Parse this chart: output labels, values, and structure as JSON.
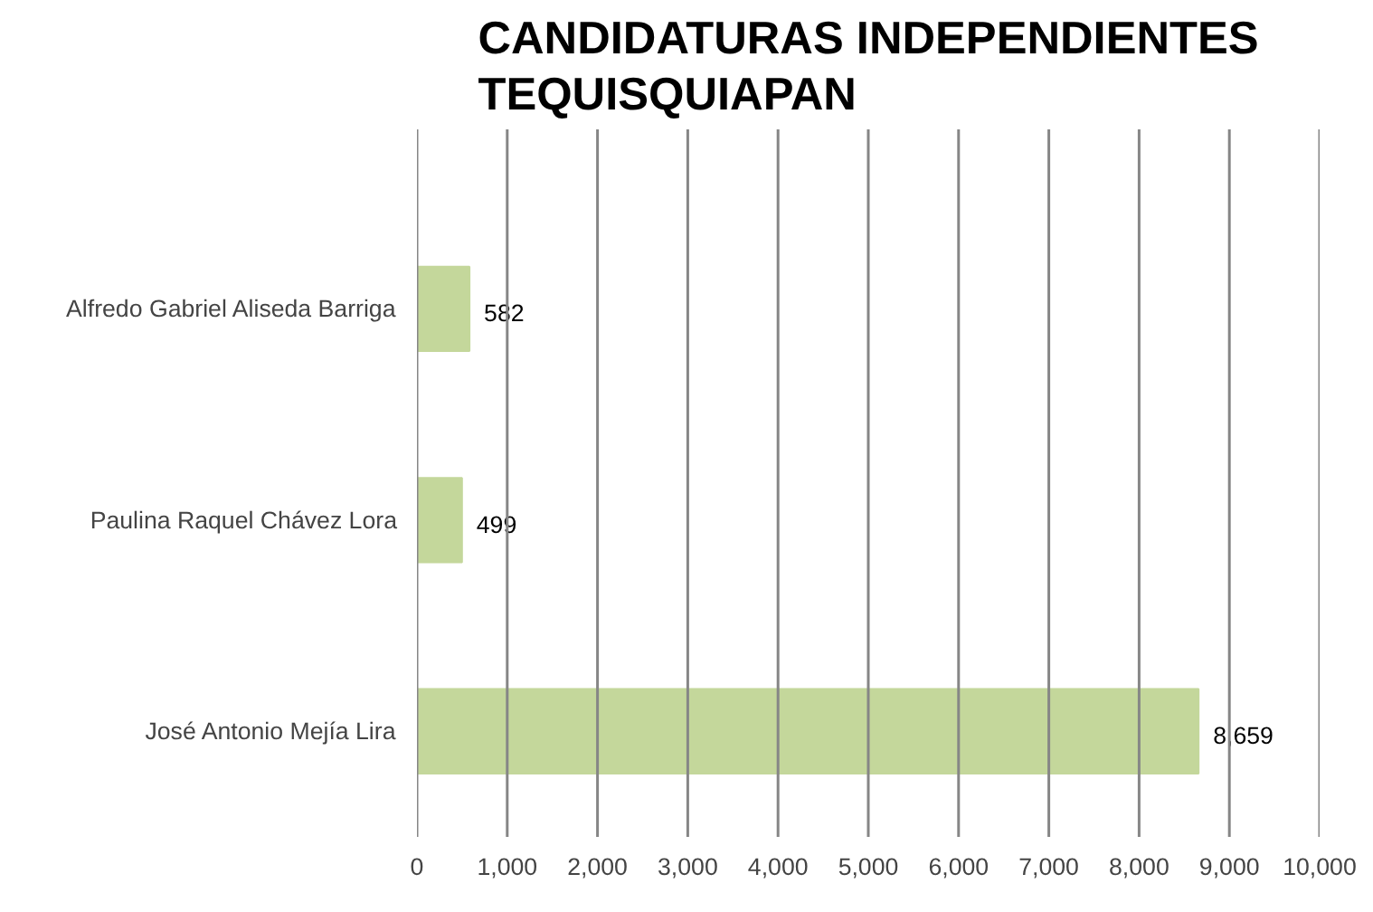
{
  "chart_data": {
    "type": "bar",
    "orientation": "horizontal",
    "title": "CANDIDATURAS INDEPENDIENTES\nTEQUISQUIAPAN",
    "categories": [
      "Alfredo Gabriel Aliseda Barriga",
      "Paulina Raquel Chávez Lora",
      "José Antonio Mejía Lira"
    ],
    "values": [
      582,
      499,
      8659
    ],
    "value_labels": [
      "582",
      "499",
      "8,659"
    ],
    "color": "#c4d79b",
    "xlim": [
      0,
      10000
    ],
    "xticks": [
      {
        "value": 0,
        "label": "0"
      },
      {
        "value": 1000,
        "label": "1,000"
      },
      {
        "value": 2000,
        "label": "2,000"
      },
      {
        "value": 3000,
        "label": "3,000"
      },
      {
        "value": 4000,
        "label": "4,000"
      },
      {
        "value": 5000,
        "label": "5,000"
      },
      {
        "value": 6000,
        "label": "6,000"
      },
      {
        "value": 7000,
        "label": "7,000"
      },
      {
        "value": 8000,
        "label": "8,000"
      },
      {
        "value": 9000,
        "label": "9,000"
      },
      {
        "value": 10000,
        "label": "10,000"
      }
    ],
    "grid": "x"
  }
}
